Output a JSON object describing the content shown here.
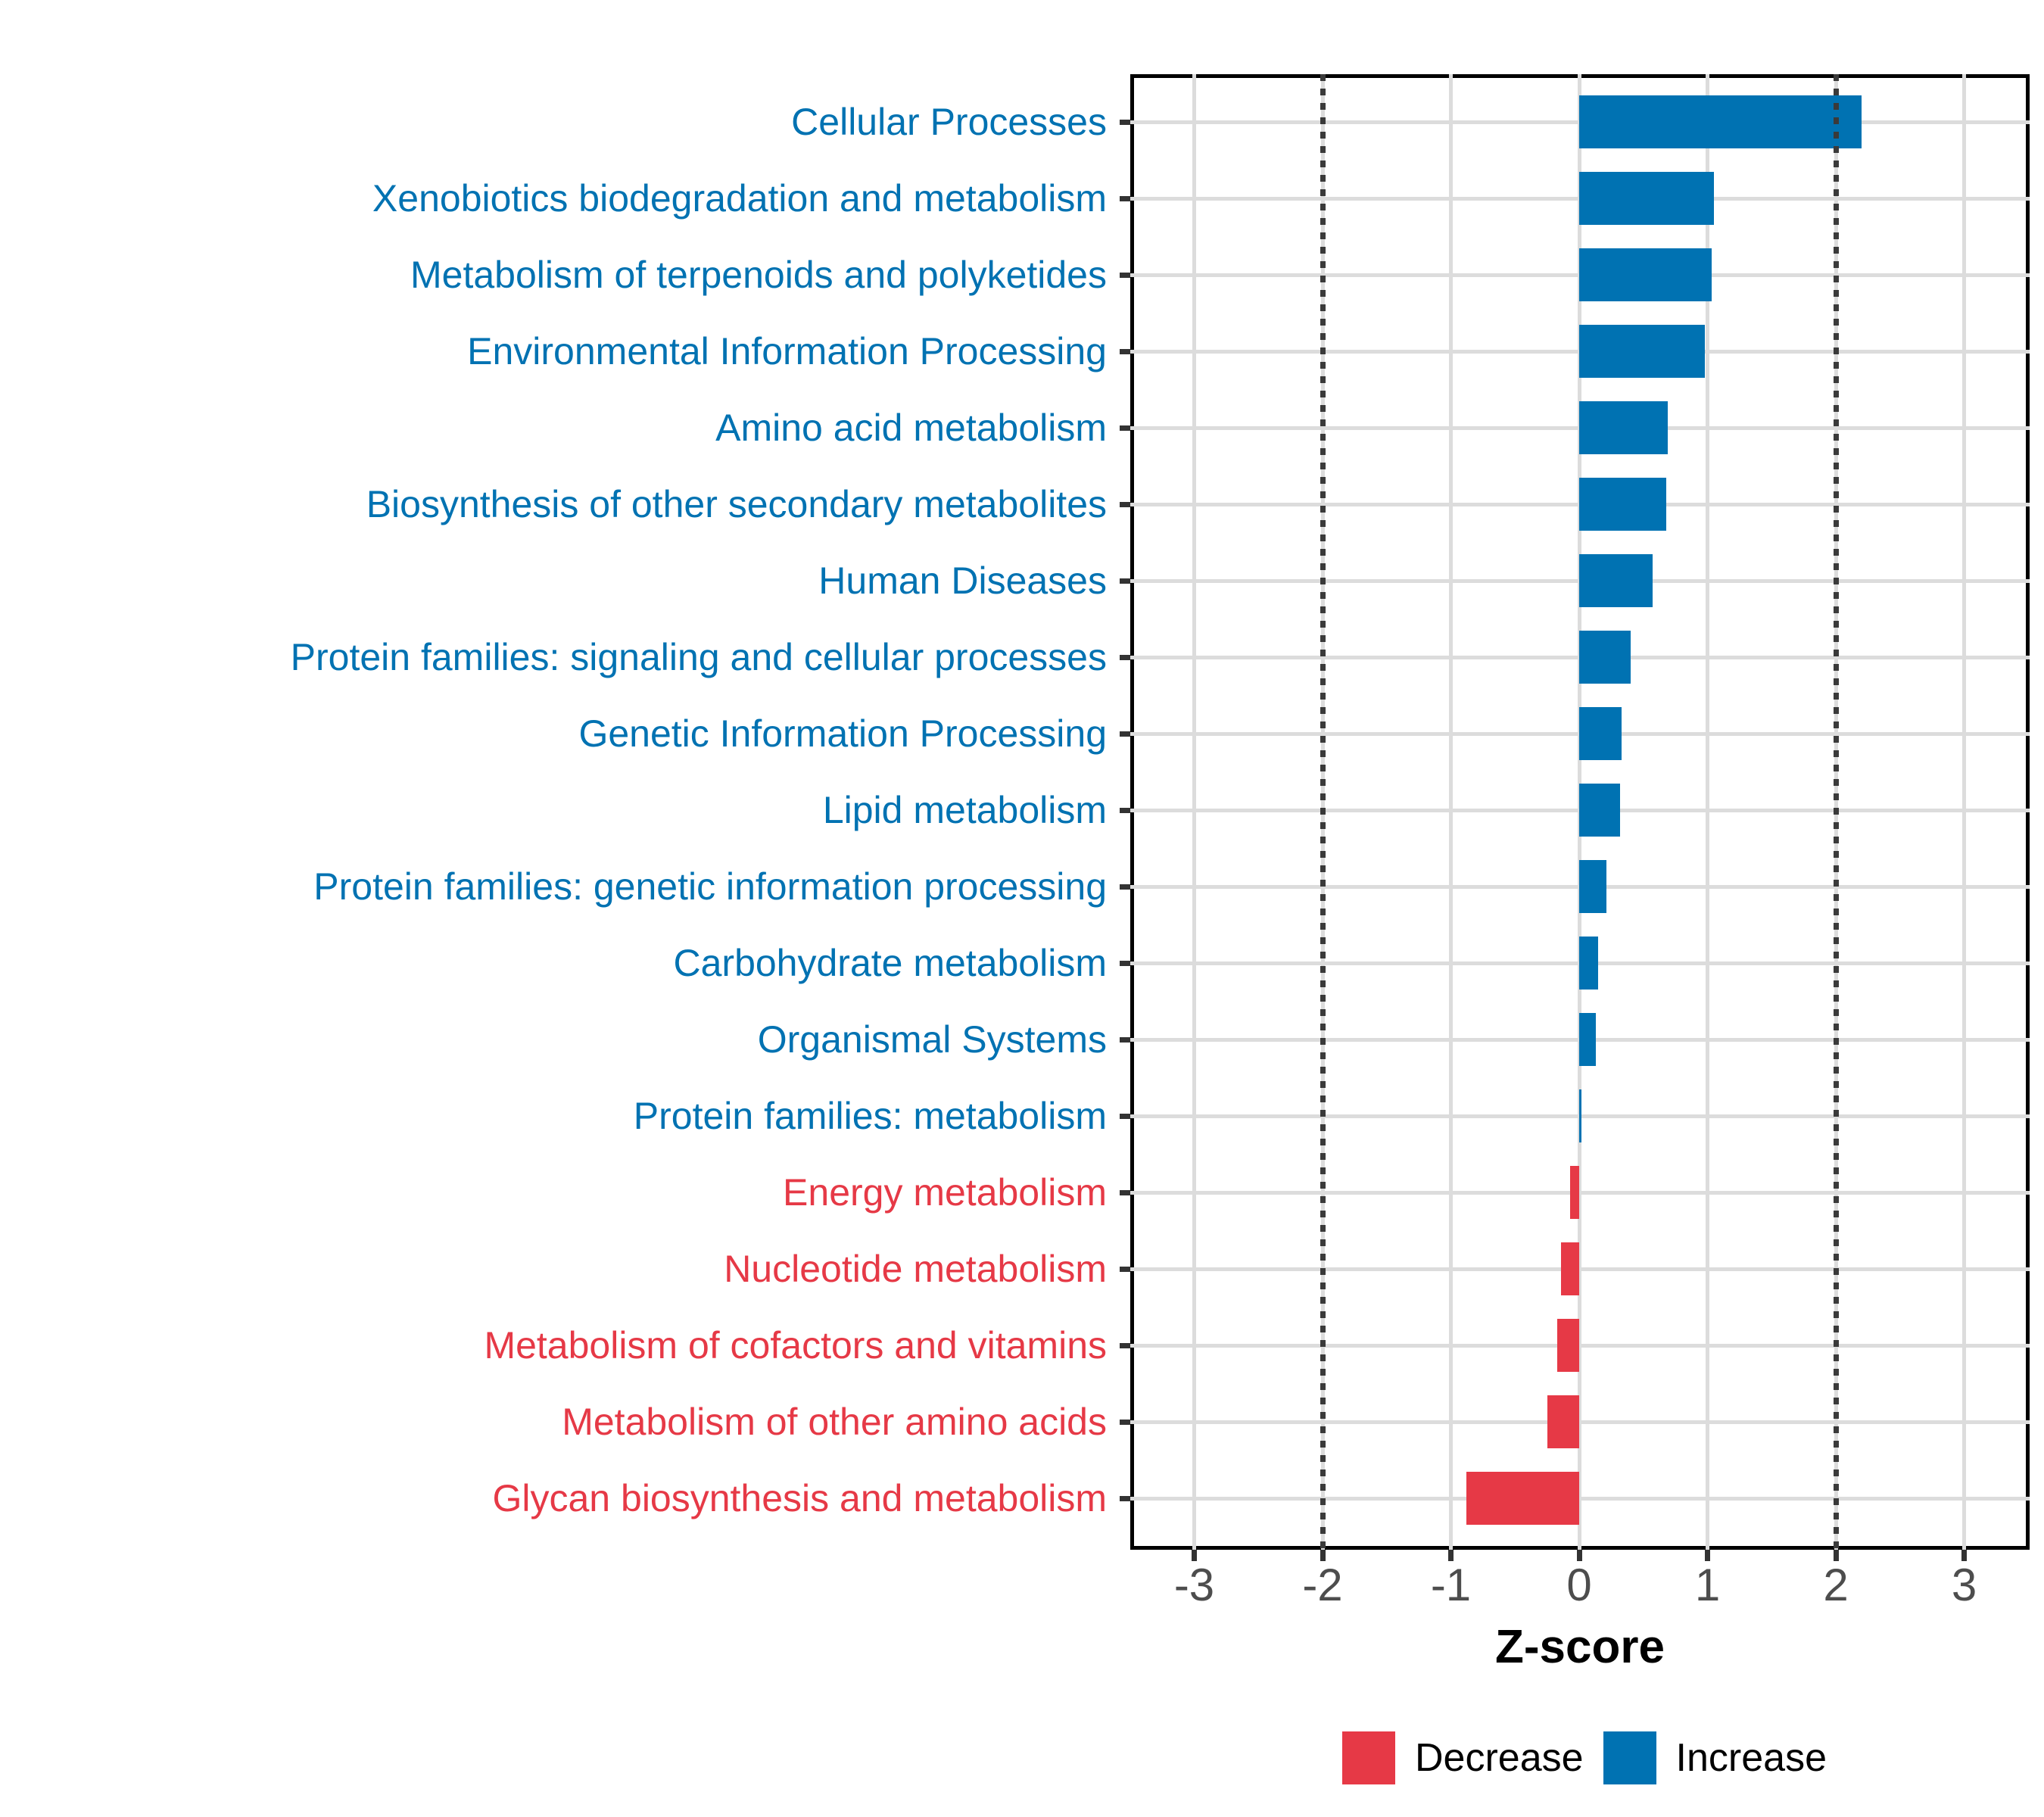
{
  "chart_data": {
    "type": "bar",
    "orientation": "horizontal",
    "xlabel": "Z-score",
    "x_ticks": [
      -3,
      -2,
      -1,
      0,
      1,
      2,
      3
    ],
    "xlim": [
      -3.5,
      3.53
    ],
    "grid": "major-light-gray",
    "reference_lines_dotted": [
      -2,
      2
    ],
    "legend_position": "bottom",
    "categories": [
      "Cellular Processes",
      "Xenobiotics biodegradation and metabolism",
      "Metabolism of terpenoids and polyketides",
      "Environmental Information Processing",
      "Amino acid metabolism",
      "Biosynthesis of other secondary metabolites",
      "Human Diseases",
      "Protein families: signaling and cellular processes",
      "Genetic Information Processing",
      "Lipid metabolism",
      "Protein families: genetic information processing",
      "Carbohydrate metabolism",
      "Organismal Systems",
      "Protein families: metabolism",
      "Energy metabolism",
      "Nucleotide metabolism",
      "Metabolism of cofactors and vitamins",
      "Metabolism of other amino acids",
      "Glycan biosynthesis and metabolism"
    ],
    "values": [
      2.2,
      1.05,
      1.03,
      0.98,
      0.69,
      0.68,
      0.57,
      0.4,
      0.33,
      0.32,
      0.21,
      0.15,
      0.13,
      0.02,
      -0.07,
      -0.14,
      -0.17,
      -0.25,
      -0.88
    ],
    "directions": [
      "Increase",
      "Increase",
      "Increase",
      "Increase",
      "Increase",
      "Increase",
      "Increase",
      "Increase",
      "Increase",
      "Increase",
      "Increase",
      "Increase",
      "Increase",
      "Increase",
      "Decrease",
      "Decrease",
      "Decrease",
      "Decrease",
      "Decrease"
    ],
    "legend": [
      {
        "label": "Decrease",
        "color": "#E63946"
      },
      {
        "label": "Increase",
        "color": "#0072B2"
      }
    ],
    "colors": {
      "increase": "#0072B2",
      "decrease": "#E63946",
      "grid": "#DCDCDC",
      "reference_line": "#3A3A3A",
      "axis_tick_label": "#4D4D4D",
      "axis_title": "#000000"
    }
  }
}
